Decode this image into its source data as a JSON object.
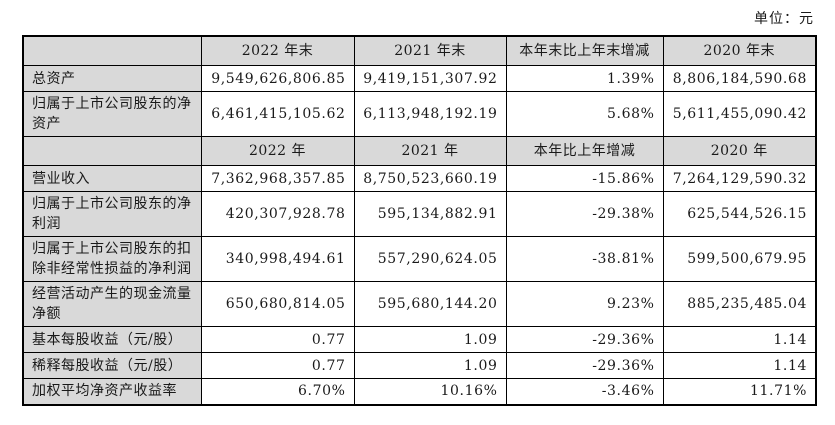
{
  "page": {
    "unit_label": "单位：元"
  },
  "table": {
    "colors": {
      "header_bg": "#d9d9d9",
      "border": "#000000",
      "text": "#1a1a1a",
      "cell_bg": "#ffffff"
    },
    "column_headers_section1": [
      "",
      "2022 年末",
      "2021 年末",
      "本年末比上年末增减",
      "2020 年末"
    ],
    "column_headers_section2": [
      "",
      "2022 年",
      "2021 年",
      "本年比上年增减",
      "2020 年"
    ],
    "sections": [
      {
        "header": [
          "",
          "2022 年末",
          "2021 年末",
          "本年末比上年末增减",
          "2020 年末"
        ],
        "rows": [
          {
            "label": "总资产",
            "values": [
              "9,549,626,806.85",
              "9,419,151,307.92",
              "1.39%",
              "8,806,184,590.68"
            ]
          },
          {
            "label": "归属于上市公司股东的净资产",
            "values": [
              "6,461,415,105.62",
              "6,113,948,192.19",
              "5.68%",
              "5,611,455,090.42"
            ]
          }
        ]
      },
      {
        "header": [
          "",
          "2022 年",
          "2021 年",
          "本年比上年增减",
          "2020 年"
        ],
        "rows": [
          {
            "label": "营业收入",
            "values": [
              "7,362,968,357.85",
              "8,750,523,660.19",
              "-15.86%",
              "7,264,129,590.32"
            ]
          },
          {
            "label": "归属于上市公司股东的净利润",
            "values": [
              "420,307,928.78",
              "595,134,882.91",
              "-29.38%",
              "625,544,526.15"
            ]
          },
          {
            "label": "归属于上市公司股东的扣除非经常性损益的净利润",
            "values": [
              "340,998,494.61",
              "557,290,624.05",
              "-38.81%",
              "599,500,679.95"
            ]
          },
          {
            "label": "经营活动产生的现金流量净额",
            "values": [
              "650,680,814.05",
              "595,680,144.20",
              "9.23%",
              "885,235,485.04"
            ]
          },
          {
            "label": "基本每股收益（元/股）",
            "values": [
              "0.77",
              "1.09",
              "-29.36%",
              "1.14"
            ]
          },
          {
            "label": "稀释每股收益（元/股）",
            "values": [
              "0.77",
              "1.09",
              "-29.36%",
              "1.14"
            ]
          },
          {
            "label": "加权平均净资产收益率",
            "values": [
              "6.70%",
              "10.16%",
              "-3.46%",
              "11.71%"
            ]
          }
        ]
      }
    ]
  }
}
